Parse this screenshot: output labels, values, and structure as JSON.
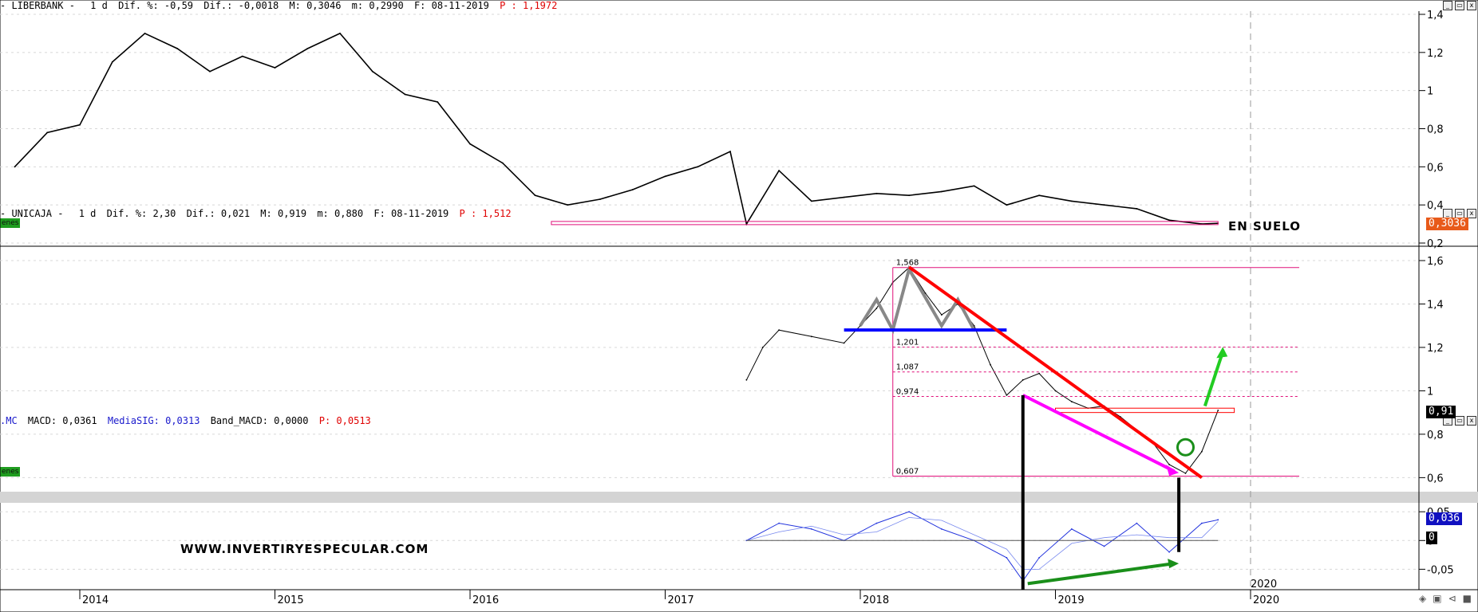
{
  "panels": {
    "top": {
      "symbol": "LIBERBANK -",
      "period": "1 d",
      "dif_pct": "Dif. %: -0,59",
      "dif": "Dif.: -0,0018",
      "max": "M: 0,3046",
      "min": "m: 0,2990",
      "date": "F: 08-11-2019",
      "p_label": "P : 1,1972",
      "last_value": "0,3036",
      "annotation": "EN SUELO",
      "left_tag": "enes"
    },
    "middle": {
      "symbol": "UNICAJA -",
      "period": "1 d",
      "dif_pct": "Dif. %: 2,30",
      "dif": "Dif.: 0,021",
      "max": "M: 0,919",
      "min": "m: 0,880",
      "date": "F: 08-11-2019",
      "p_label": "P : 1,512",
      "last_value": "0,91",
      "left_tag": "enes",
      "fib_levels": [
        "1,568",
        "1,201",
        "1,087",
        "0,974",
        "0,607"
      ]
    },
    "bottom": {
      "prefix": ".MC",
      "macd": "MACD: 0,0361",
      "mediasig": "MediaSIG: 0,0313",
      "band": "Band_MACD: 0,0000",
      "p_label": "P: 0,0513",
      "last_value": "0,036",
      "zero_chip": "0",
      "watermark": "WWW.INVERTIRYESPECULAR.COM"
    }
  },
  "window_buttons": [
    "_",
    "▭",
    "x"
  ],
  "chart_data": [
    {
      "type": "line",
      "title": "LIBERBANK",
      "x": [
        "2013-09",
        "2013-11",
        "2014-01",
        "2014-03",
        "2014-05",
        "2014-07",
        "2014-09",
        "2014-11",
        "2015-01",
        "2015-03",
        "2015-05",
        "2015-07",
        "2015-09",
        "2015-11",
        "2016-01",
        "2016-03",
        "2016-05",
        "2016-07",
        "2016-09",
        "2016-11",
        "2017-01",
        "2017-03",
        "2017-05",
        "2017-06",
        "2017-08",
        "2017-10",
        "2017-12",
        "2018-02",
        "2018-04",
        "2018-06",
        "2018-08",
        "2018-10",
        "2018-12",
        "2019-02",
        "2019-04",
        "2019-06",
        "2019-08",
        "2019-10",
        "2019-11"
      ],
      "y": [
        0.6,
        0.78,
        0.82,
        1.15,
        1.3,
        1.22,
        1.1,
        1.18,
        1.12,
        1.22,
        1.3,
        1.1,
        0.98,
        0.94,
        0.72,
        0.62,
        0.45,
        0.4,
        0.43,
        0.48,
        0.55,
        0.6,
        0.68,
        0.3,
        0.58,
        0.42,
        0.44,
        0.46,
        0.45,
        0.47,
        0.5,
        0.4,
        0.45,
        0.42,
        0.4,
        0.38,
        0.32,
        0.3,
        0.3036
      ],
      "ylim": [
        0.2,
        1.4
      ],
      "yticks": [
        0.2,
        0.4,
        0.6,
        0.8,
        1,
        1.2,
        1.4
      ]
    },
    {
      "type": "line",
      "title": "UNICAJA",
      "x": [
        "2017-06",
        "2017-07",
        "2017-08",
        "2017-10",
        "2017-12",
        "2018-01",
        "2018-02",
        "2018-03",
        "2018-04",
        "2018-05",
        "2018-06",
        "2018-07",
        "2018-08",
        "2018-09",
        "2018-10",
        "2018-11",
        "2018-12",
        "2019-01",
        "2019-02",
        "2019-03",
        "2019-04",
        "2019-05",
        "2019-06",
        "2019-07",
        "2019-08",
        "2019-09",
        "2019-10",
        "2019-11"
      ],
      "y": [
        1.05,
        1.2,
        1.28,
        1.25,
        1.22,
        1.3,
        1.38,
        1.5,
        1.568,
        1.45,
        1.35,
        1.4,
        1.3,
        1.12,
        0.98,
        1.05,
        1.08,
        1.0,
        0.95,
        0.92,
        0.93,
        0.88,
        0.82,
        0.76,
        0.66,
        0.62,
        0.72,
        0.91
      ],
      "ylim": [
        0.55,
        1.6
      ],
      "yticks": [
        0.6,
        0.8,
        1,
        1.2,
        1.4,
        1.6
      ]
    },
    {
      "type": "line",
      "title": "MACD",
      "x": [
        "2017-06",
        "2017-08",
        "2017-10",
        "2017-12",
        "2018-02",
        "2018-04",
        "2018-06",
        "2018-08",
        "2018-10",
        "2018-11",
        "2018-12",
        "2019-02",
        "2019-04",
        "2019-06",
        "2019-08",
        "2019-10",
        "2019-11"
      ],
      "y": [
        0.0,
        0.03,
        0.02,
        0.0,
        0.03,
        0.05,
        0.02,
        0.0,
        -0.03,
        -0.07,
        -0.03,
        0.02,
        -0.01,
        0.03,
        -0.02,
        0.03,
        0.036
      ],
      "ylim": [
        -0.08,
        0.06
      ],
      "yticks": [
        -0.05,
        0,
        0.05
      ]
    }
  ],
  "x_axis": {
    "years": [
      "2014",
      "2015",
      "2016",
      "2017",
      "2018",
      "2019",
      "2020"
    ],
    "inner_year": "2020"
  },
  "y_axis": {
    "top": [
      "1,4",
      "1,2",
      "1",
      "0,8",
      "0,6",
      "0,4",
      "0,2"
    ],
    "middle": [
      "1,6",
      "1,4",
      "1,2",
      "1",
      "0,8",
      "0,6"
    ],
    "bottom": [
      "0,05",
      "0",
      "-0,05"
    ]
  },
  "colors": {
    "price": "#000000",
    "macd": "#2233dd",
    "trend_red": "#ff0000",
    "support_blue": "#0000ff",
    "fib": "#e0107a",
    "divergence_magenta": "#ff00ff",
    "divergence_green": "#1a8f1a",
    "arrow_green": "#22cc22",
    "shoulders": "#888888",
    "last_chip_top": "#e85a1a",
    "last_chip_mid": "#000000",
    "last_chip_macd": "#1010c0"
  }
}
